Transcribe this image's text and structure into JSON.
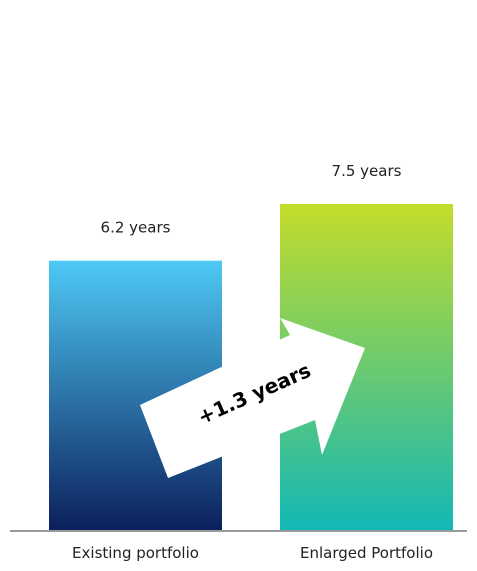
{
  "chart_data": {
    "type": "bar",
    "categories": [
      "Existing portfolio",
      "Enlarged Portfolio"
    ],
    "values": [
      6.2,
      7.5
    ],
    "data_labels": [
      "6.2 years",
      "7.5 years"
    ],
    "annotation": "+1.3 years",
    "title": "",
    "xlabel": "",
    "ylabel": "",
    "grid": false,
    "legend": "none"
  },
  "colors": {
    "bar1_top": "#4ec9f5",
    "bar1_bottom": "#0b1f5c",
    "bar2_top": "#c4dc2a",
    "bar2_bottom": "#12b8b6",
    "arrow": "#ffffff",
    "axis": "#999999",
    "text": "#222222"
  }
}
